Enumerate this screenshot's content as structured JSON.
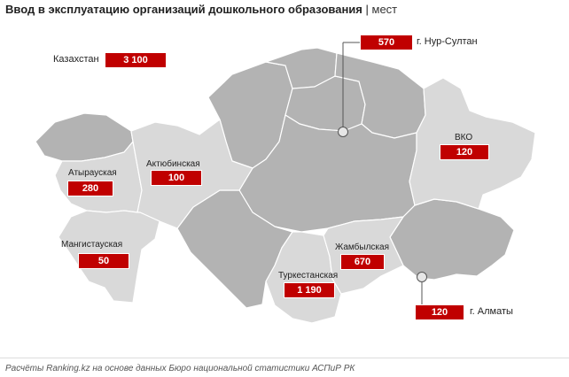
{
  "title": {
    "main": "Ввод в эксплуатацию организаций дошкольного образования",
    "separator": "|",
    "unit": "мест"
  },
  "total": {
    "label": "Казахстан",
    "value": "3 100"
  },
  "regions": [
    {
      "name": "Атырауская",
      "value": "280"
    },
    {
      "name": "Актюбинская",
      "value": "100"
    },
    {
      "name": "Мангистауская",
      "value": "50"
    },
    {
      "name": "Туркестанская",
      "value": "1 190"
    },
    {
      "name": "Жамбылская",
      "value": "670"
    },
    {
      "name": "ВКО",
      "value": "120"
    }
  ],
  "cities": [
    {
      "name": "г. Нур-Султан",
      "value": "570"
    },
    {
      "name": "г. Алматы",
      "value": "120"
    }
  ],
  "colors": {
    "highlight_region": "#d9d9d9",
    "other_region": "#b3b3b3",
    "badge": "#c00000"
  },
  "source": "Расчёты Ranking.kz на основе данных Бюро национальной статистики АСПиР РК"
}
